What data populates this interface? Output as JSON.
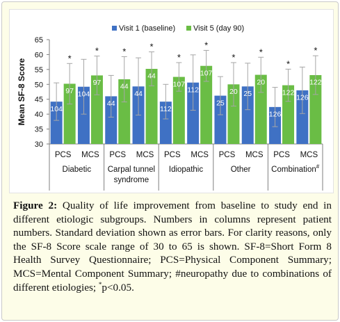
{
  "colors": {
    "visit1": "#3f71c4",
    "visit5": "#6abd45",
    "axis": "#7f7f7f",
    "frame_bg": "#fdfde8",
    "error_bar": "#a6a6a6"
  },
  "chart_data": {
    "type": "bar",
    "ylabel": "Mean SF-8 Score",
    "ylim": [
      30,
      65
    ],
    "yticks": [
      30,
      35,
      40,
      45,
      50,
      55,
      60,
      65
    ],
    "grid": false,
    "legend_position": "top-center",
    "series": [
      {
        "name": "Visit 1 (baseline)",
        "color": "#3f71c4"
      },
      {
        "name": "Visit 5 (day 90)",
        "color": "#6abd45"
      }
    ],
    "groups": [
      {
        "label": "Diabetic",
        "subgroups": [
          {
            "label": "PCS",
            "bars": [
              {
                "series": 0,
                "mean": 44.2,
                "sd": 6.3,
                "n": "104"
              },
              {
                "series": 1,
                "mean": 50.2,
                "sd": 6.8,
                "n": "97",
                "marker": "*"
              }
            ]
          },
          {
            "label": "MCS",
            "bars": [
              {
                "series": 0,
                "mean": 49.2,
                "sd": 9.2,
                "n": "104"
              },
              {
                "series": 1,
                "mean": 53.0,
                "sd": 6.5,
                "n": "97",
                "marker": "*"
              }
            ]
          }
        ]
      },
      {
        "label": "Carpal tunnel syndrome",
        "label_lines": [
          "Carpal tunnel",
          "syndrome"
        ],
        "subgroups": [
          {
            "label": "PCS",
            "bars": [
              {
                "series": 0,
                "mean": 46.0,
                "sd": 7.0,
                "n": "44"
              },
              {
                "series": 1,
                "mean": 51.7,
                "sd": 7.6,
                "n": "44",
                "marker": "*"
              }
            ]
          },
          {
            "label": "MCS",
            "bars": [
              {
                "series": 0,
                "mean": 49.3,
                "sd": 9.6,
                "n": "44"
              },
              {
                "series": 1,
                "mean": 55.2,
                "sd": 5.7,
                "n": "44",
                "marker": "*"
              }
            ]
          }
        ]
      },
      {
        "label": "Idiopathic",
        "subgroups": [
          {
            "label": "PCS",
            "bars": [
              {
                "series": 0,
                "mean": 44.2,
                "sd": 5.8,
                "n": "112"
              },
              {
                "series": 1,
                "mean": 52.5,
                "sd": 4.8,
                "n": "107",
                "marker": "*"
              }
            ]
          },
          {
            "label": "MCS",
            "bars": [
              {
                "series": 0,
                "mean": 50.6,
                "sd": 9.3,
                "n": "112"
              },
              {
                "series": 1,
                "mean": 56.2,
                "sd": 5.2,
                "n": "107",
                "marker": "*"
              }
            ]
          }
        ]
      },
      {
        "label": "Other",
        "subgroups": [
          {
            "label": "PCS",
            "bars": [
              {
                "series": 0,
                "mean": 46.2,
                "sd": 6.4,
                "n": "25"
              },
              {
                "series": 1,
                "mean": 50.0,
                "sd": 7.3,
                "n": "20",
                "marker": "*"
              }
            ]
          },
          {
            "label": "MCS",
            "bars": [
              {
                "series": 0,
                "mean": 49.3,
                "sd": 7.8,
                "n": "25"
              },
              {
                "series": 1,
                "mean": 53.2,
                "sd": 5.9,
                "n": "20",
                "marker": "*"
              }
            ]
          }
        ]
      },
      {
        "label": "Combination",
        "label_suffix": "#",
        "subgroups": [
          {
            "label": "PCS",
            "bars": [
              {
                "series": 0,
                "mean": 42.4,
                "sd": 6.6,
                "n": "126"
              },
              {
                "series": 1,
                "mean": 49.7,
                "sd": 5.4,
                "n": "122",
                "marker": "*"
              }
            ]
          },
          {
            "label": "MCS",
            "bars": [
              {
                "series": 0,
                "mean": 48.0,
                "sd": 7.8,
                "n": "126"
              },
              {
                "series": 1,
                "mean": 53.1,
                "sd": 6.5,
                "n": "122",
                "marker": "*"
              }
            ]
          }
        ]
      }
    ]
  },
  "caption": {
    "label": "Figure 2:",
    "text_1": " Quality of life improvement from baseline to study end in different etiologic subgroups. Numbers in columns represent patient numbers. Standard deviation shown as error bars. For clarity reasons, only the SF-8 Score scale range of 30 to 65 is shown. SF-8=Short Form 8 Health Survey Questionnaire; PCS=Physical Component Summary; MCS=Mental Component Summary; #neuropathy due to combinations of different etiologies; ",
    "superscript": "*",
    "text_2": "p<0.05."
  }
}
